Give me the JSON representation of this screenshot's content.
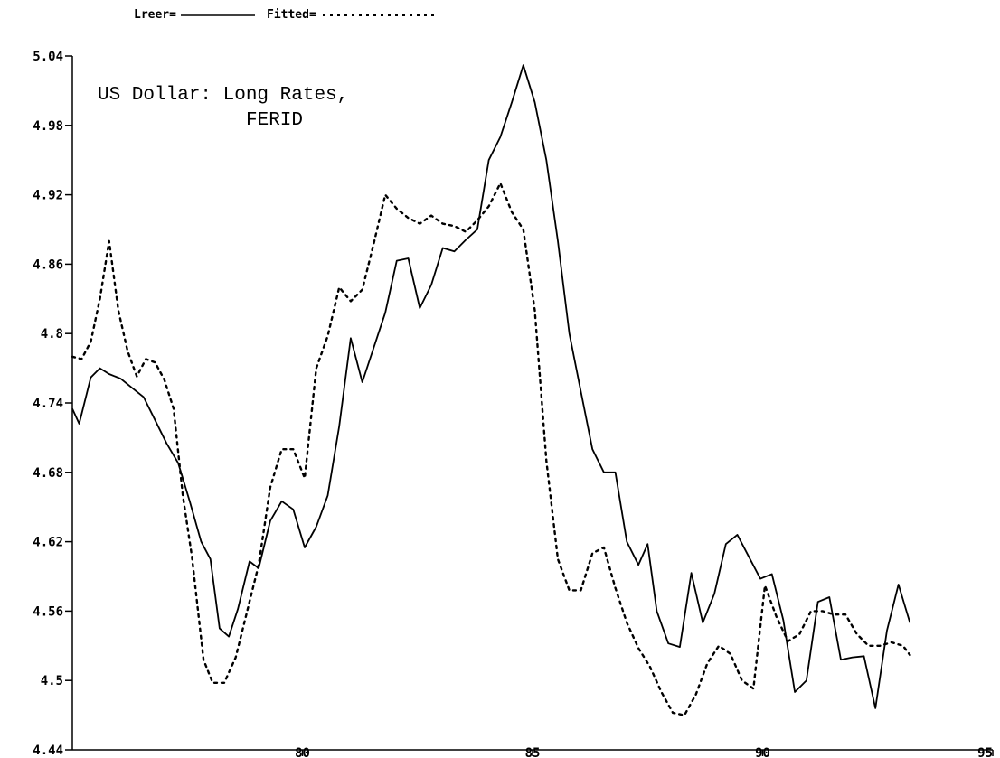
{
  "chart_data": {
    "type": "line",
    "title_lines": [
      "US Dollar: Long Rates,",
      "FERID"
    ],
    "legend": [
      {
        "label": "Lreer=",
        "style": "solid"
      },
      {
        "label": "Fitted=",
        "style": "dotted"
      }
    ],
    "xlim": [
      75,
      95
    ],
    "ylim": [
      4.44,
      5.04
    ],
    "x_ticks": [
      80,
      85,
      90,
      95
    ],
    "x_tick_labels": [
      "80",
      "85",
      "90",
      "95"
    ],
    "y_ticks": [
      4.44,
      4.5,
      4.56,
      4.62,
      4.68,
      4.74,
      4.8,
      4.86,
      4.92,
      4.98,
      5.04
    ],
    "y_tick_labels": [
      "4.44",
      "4.5",
      "4.56",
      "4.62",
      "4.68",
      "4.74",
      "4.8",
      "4.86",
      "4.92",
      "4.98",
      "5.04"
    ],
    "grid": false,
    "legend_placement": "top-left",
    "series": [
      {
        "name": "Lreer",
        "style": "solid",
        "color": "#000000",
        "points": [
          [
            75.0,
            4.735
          ],
          [
            75.15,
            4.722
          ],
          [
            75.4,
            4.762
          ],
          [
            75.6,
            4.77
          ],
          [
            75.8,
            4.765
          ],
          [
            76.05,
            4.761
          ],
          [
            76.3,
            4.753
          ],
          [
            76.55,
            4.745
          ],
          [
            76.8,
            4.725
          ],
          [
            77.05,
            4.705
          ],
          [
            77.3,
            4.688
          ],
          [
            77.55,
            4.655
          ],
          [
            77.8,
            4.62
          ],
          [
            78.0,
            4.605
          ],
          [
            78.2,
            4.545
          ],
          [
            78.4,
            4.538
          ],
          [
            78.6,
            4.562
          ],
          [
            78.85,
            4.603
          ],
          [
            79.05,
            4.597
          ],
          [
            79.3,
            4.638
          ],
          [
            79.55,
            4.655
          ],
          [
            79.8,
            4.648
          ],
          [
            80.05,
            4.615
          ],
          [
            80.3,
            4.633
          ],
          [
            80.55,
            4.66
          ],
          [
            80.8,
            4.72
          ],
          [
            81.05,
            4.796
          ],
          [
            81.3,
            4.758
          ],
          [
            81.55,
            4.788
          ],
          [
            81.8,
            4.818
          ],
          [
            82.05,
            4.863
          ],
          [
            82.3,
            4.865
          ],
          [
            82.55,
            4.822
          ],
          [
            82.8,
            4.842
          ],
          [
            83.05,
            4.874
          ],
          [
            83.3,
            4.871
          ],
          [
            83.55,
            4.881
          ],
          [
            83.8,
            4.89
          ],
          [
            84.05,
            4.95
          ],
          [
            84.3,
            4.97
          ],
          [
            84.55,
            5.0
          ],
          [
            84.8,
            5.032
          ],
          [
            85.05,
            5.0
          ],
          [
            85.3,
            4.95
          ],
          [
            85.55,
            4.88
          ],
          [
            85.8,
            4.8
          ],
          [
            86.05,
            4.75
          ],
          [
            86.3,
            4.7
          ],
          [
            86.55,
            4.68
          ],
          [
            86.8,
            4.68
          ],
          [
            87.05,
            4.62
          ],
          [
            87.3,
            4.6
          ],
          [
            87.5,
            4.618
          ],
          [
            87.7,
            4.56
          ],
          [
            87.95,
            4.532
          ],
          [
            88.2,
            4.529
          ],
          [
            88.45,
            4.593
          ],
          [
            88.7,
            4.55
          ],
          [
            88.95,
            4.575
          ],
          [
            89.2,
            4.618
          ],
          [
            89.45,
            4.626
          ],
          [
            89.7,
            4.607
          ],
          [
            89.95,
            4.588
          ],
          [
            90.2,
            4.592
          ],
          [
            90.45,
            4.552
          ],
          [
            90.7,
            4.49
          ],
          [
            90.95,
            4.5
          ],
          [
            91.2,
            4.568
          ],
          [
            91.45,
            4.572
          ],
          [
            91.7,
            4.518
          ],
          [
            91.95,
            4.52
          ],
          [
            92.2,
            4.521
          ],
          [
            92.45,
            4.476
          ],
          [
            92.7,
            4.543
          ],
          [
            92.95,
            4.583
          ],
          [
            93.2,
            4.55
          ]
        ]
      },
      {
        "name": "Fitted",
        "style": "dotted",
        "color": "#000000",
        "points": [
          [
            75.0,
            4.78
          ],
          [
            75.2,
            4.778
          ],
          [
            75.4,
            4.793
          ],
          [
            75.6,
            4.83
          ],
          [
            75.8,
            4.88
          ],
          [
            76.0,
            4.82
          ],
          [
            76.2,
            4.785
          ],
          [
            76.4,
            4.763
          ],
          [
            76.6,
            4.778
          ],
          [
            76.8,
            4.775
          ],
          [
            77.0,
            4.76
          ],
          [
            77.2,
            4.735
          ],
          [
            77.4,
            4.66
          ],
          [
            77.6,
            4.607
          ],
          [
            77.85,
            4.518
          ],
          [
            78.05,
            4.498
          ],
          [
            78.3,
            4.498
          ],
          [
            78.55,
            4.52
          ],
          [
            78.8,
            4.56
          ],
          [
            79.05,
            4.6
          ],
          [
            79.3,
            4.667
          ],
          [
            79.55,
            4.7
          ],
          [
            79.8,
            4.7
          ],
          [
            80.05,
            4.675
          ],
          [
            80.3,
            4.77
          ],
          [
            80.55,
            4.798
          ],
          [
            80.8,
            4.84
          ],
          [
            81.05,
            4.828
          ],
          [
            81.3,
            4.838
          ],
          [
            81.55,
            4.878
          ],
          [
            81.8,
            4.92
          ],
          [
            82.05,
            4.908
          ],
          [
            82.3,
            4.9
          ],
          [
            82.55,
            4.895
          ],
          [
            82.8,
            4.902
          ],
          [
            83.05,
            4.895
          ],
          [
            83.3,
            4.893
          ],
          [
            83.55,
            4.888
          ],
          [
            83.8,
            4.898
          ],
          [
            84.05,
            4.91
          ],
          [
            84.3,
            4.93
          ],
          [
            84.55,
            4.905
          ],
          [
            84.8,
            4.89
          ],
          [
            85.05,
            4.82
          ],
          [
            85.3,
            4.69
          ],
          [
            85.55,
            4.605
          ],
          [
            85.8,
            4.578
          ],
          [
            86.05,
            4.578
          ],
          [
            86.3,
            4.61
          ],
          [
            86.55,
            4.615
          ],
          [
            86.8,
            4.58
          ],
          [
            87.05,
            4.55
          ],
          [
            87.3,
            4.528
          ],
          [
            87.55,
            4.512
          ],
          [
            87.8,
            4.49
          ],
          [
            88.05,
            4.472
          ],
          [
            88.3,
            4.47
          ],
          [
            88.55,
            4.488
          ],
          [
            88.8,
            4.515
          ],
          [
            89.05,
            4.53
          ],
          [
            89.3,
            4.523
          ],
          [
            89.55,
            4.5
          ],
          [
            89.8,
            4.493
          ],
          [
            90.05,
            4.582
          ],
          [
            90.3,
            4.555
          ],
          [
            90.55,
            4.534
          ],
          [
            90.8,
            4.54
          ],
          [
            91.05,
            4.56
          ],
          [
            91.3,
            4.56
          ],
          [
            91.55,
            4.557
          ],
          [
            91.8,
            4.557
          ],
          [
            92.05,
            4.54
          ],
          [
            92.3,
            4.53
          ],
          [
            92.55,
            4.53
          ],
          [
            92.8,
            4.533
          ],
          [
            93.05,
            4.53
          ],
          [
            93.2,
            4.522
          ]
        ]
      }
    ]
  }
}
